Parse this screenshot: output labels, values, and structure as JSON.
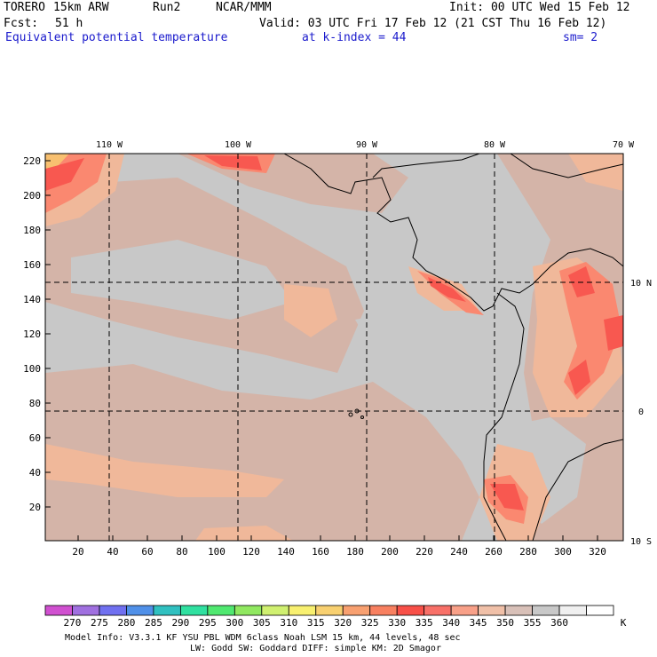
{
  "header": {
    "model": "TORERO",
    "resolution": "15km ARW",
    "run": "Run2",
    "org": "NCAR/MMM",
    "init": "Init: 00 UTC Wed 15 Feb 12",
    "fcst_label": "Fcst:",
    "fcst_value": "51 h",
    "valid": "Valid: 03 UTC Fri 17 Feb 12 (21 CST Thu 16 Feb 12)",
    "field": "Equivalent potential temperature",
    "level": "at k-index =  44",
    "smoothing": "sm= 2"
  },
  "map": {
    "top_lon_labels": [
      "110 W",
      "100 W",
      "90 W",
      "80 W",
      "70 W"
    ],
    "right_lat_labels": [
      "10 N",
      "0",
      "10 S"
    ],
    "left_ticks": [
      "220",
      "200",
      "180",
      "160",
      "140",
      "120",
      "100",
      "80",
      "60",
      "40",
      "20"
    ],
    "bottom_ticks": [
      "20",
      "40",
      "60",
      "80",
      "100",
      "120",
      "140",
      "160",
      "180",
      "200",
      "220",
      "240",
      "260",
      "280",
      "300",
      "320"
    ],
    "colors": {
      "background": "#c8c8c8",
      "warm1": "#d4b4a8",
      "warm2": "#f0b89a",
      "warm3": "#fa8870",
      "warm4": "#f85850",
      "orange": "#f8c070"
    }
  },
  "colorbar": {
    "labels": [
      "270",
      "275",
      "280",
      "285",
      "290",
      "295",
      "300",
      "305",
      "310",
      "315",
      "320",
      "325",
      "330",
      "335",
      "340",
      "345",
      "350",
      "355",
      "360"
    ],
    "unit": "K",
    "colors": [
      "#d050d0",
      "#a070e0",
      "#7070f0",
      "#5090e8",
      "#30c0c0",
      "#30e0a0",
      "#50e870",
      "#90e860",
      "#d0f070",
      "#f8f070",
      "#f8d070",
      "#f8a070",
      "#f88060",
      "#f85048",
      "#f87068",
      "#f8a088",
      "#f0c0a8",
      "#d8c0b8",
      "#c8c8c8",
      "#f0f0f0",
      "#ffffff"
    ]
  },
  "footer": {
    "line1": "Model Info: V3.3.1   KF     YSU PBL  WDM 6class  Noah LSM  15 km,   44 levels,   48 sec",
    "line2": "LW: Godd SW: Goddard DIFF: simple KM: 2D Smagor"
  }
}
